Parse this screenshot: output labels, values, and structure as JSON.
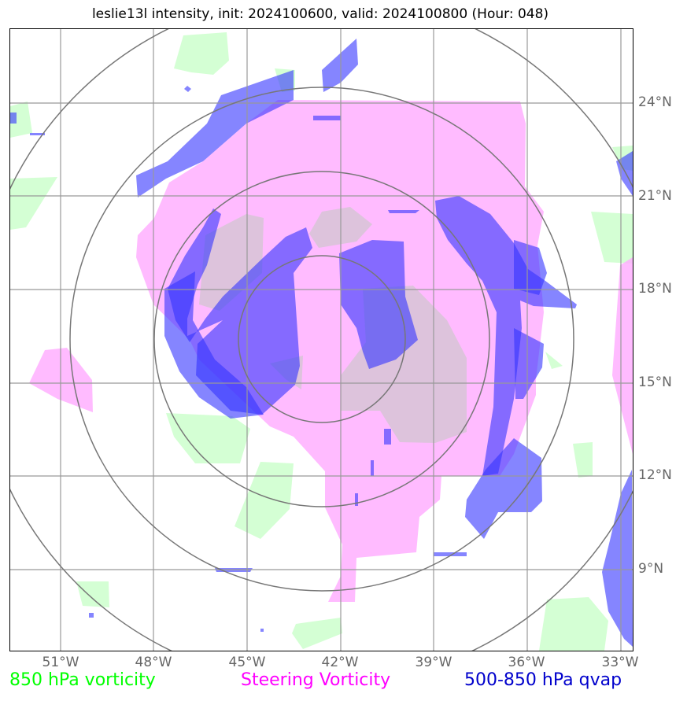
{
  "title": "leslie13l intensity, init: 2024100600, valid: 2024100800 (Hour: 048)",
  "lat_labels": [
    "24°N",
    "21°N",
    "18°N",
    "15°N",
    "12°N",
    "9°N"
  ],
  "lon_labels": [
    "51°W",
    "48°W",
    "45°W",
    "42°W",
    "39°W",
    "36°W",
    "33°W"
  ],
  "legend": {
    "vort850": {
      "label": "850 hPa vorticity",
      "color": "#00ff00"
    },
    "steering": {
      "label": "Steering Vorticity",
      "color": "#ff00ff"
    },
    "qvap": {
      "label": "500-850 hPa qvap",
      "color": "#0000cc"
    }
  },
  "colors": {
    "vort850_fill": "#ccffcc",
    "steering_fill": "#ffaaff",
    "qvap_fill": "#3333ff",
    "gridline": "#999999",
    "range_ring": "#777777"
  }
}
